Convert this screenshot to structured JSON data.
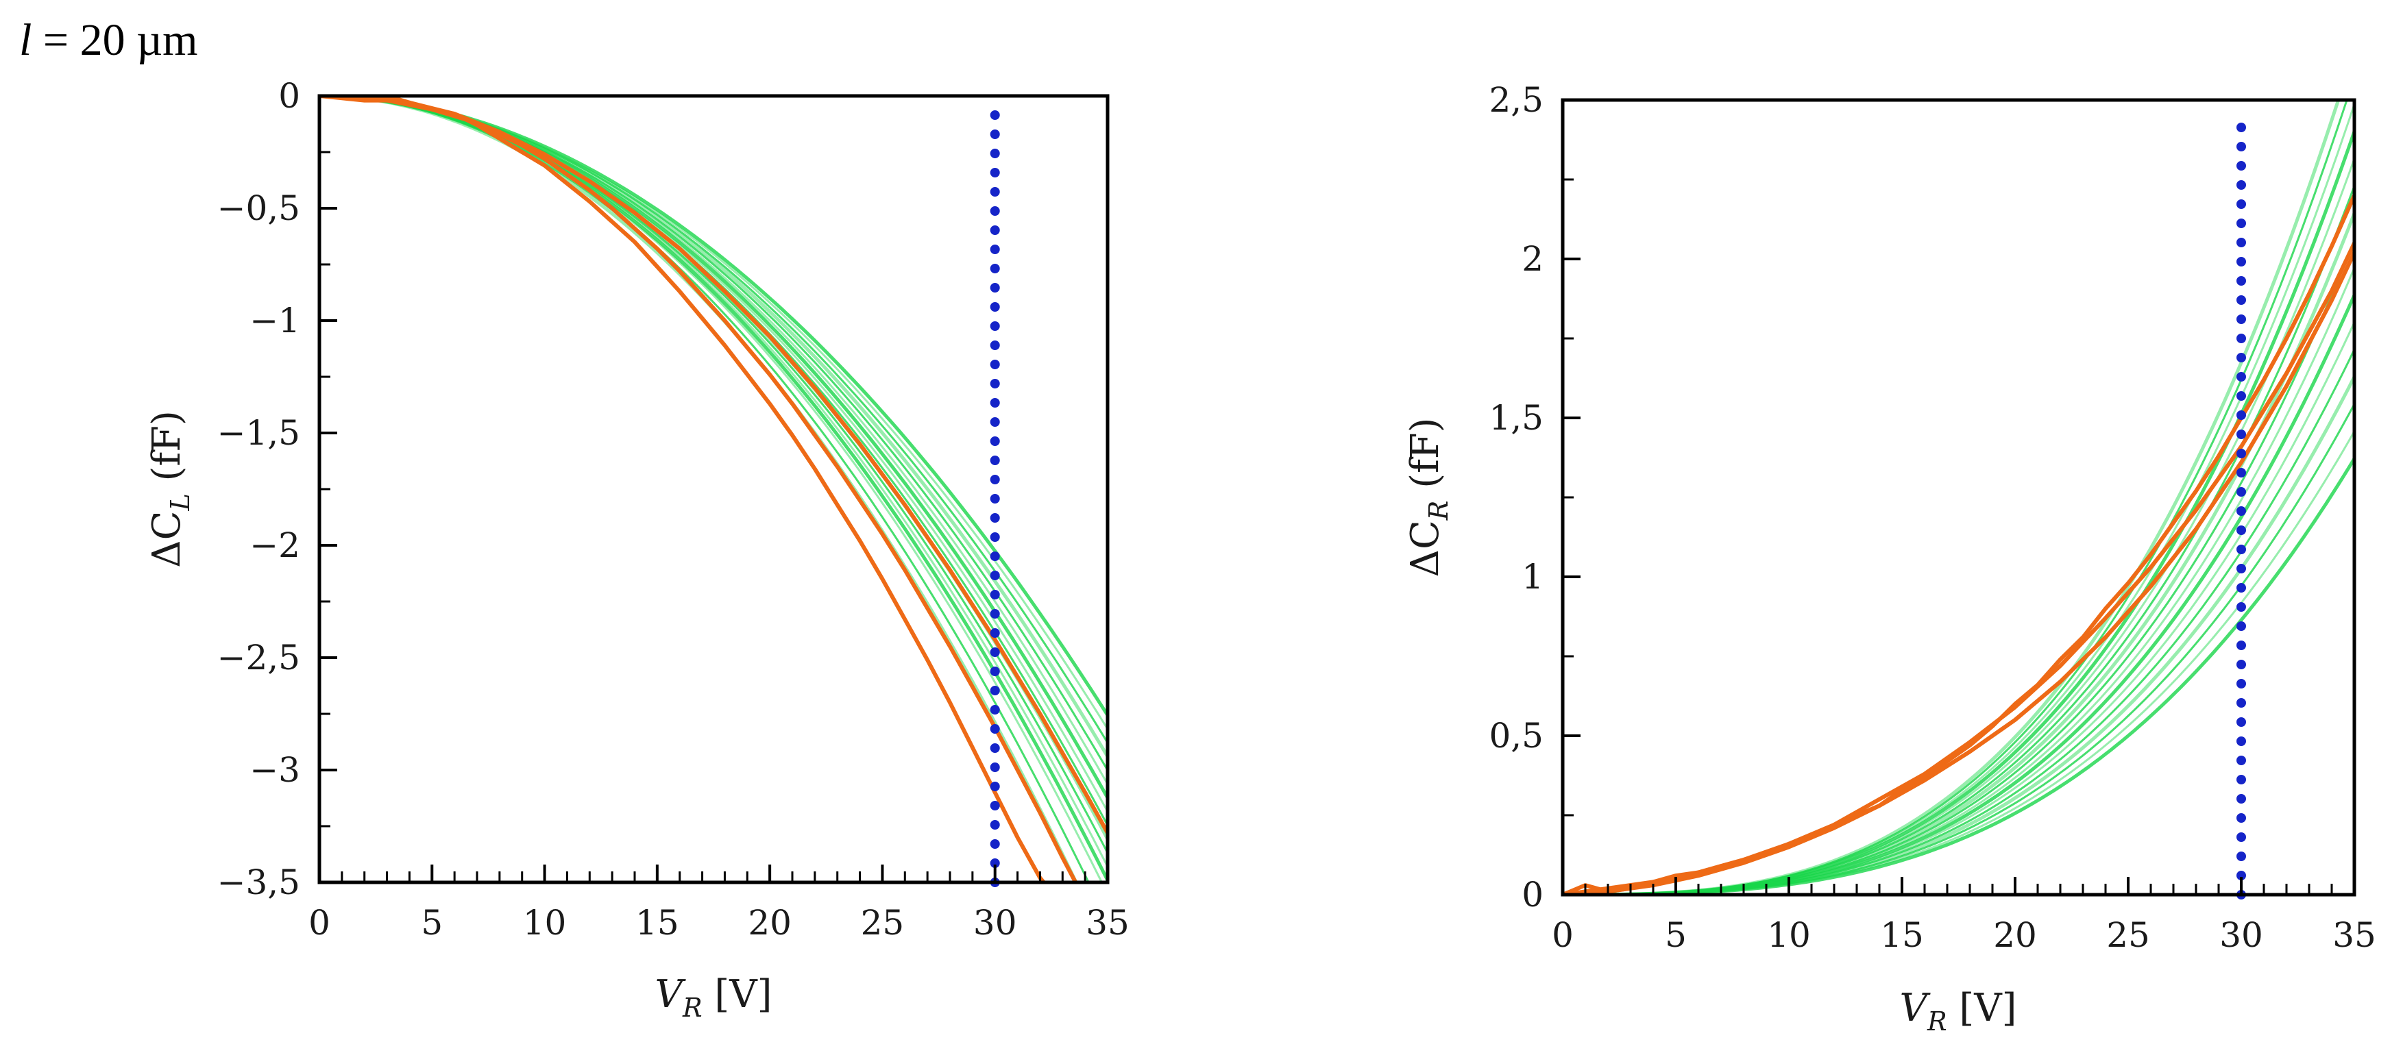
{
  "figure_label": "l = 20 µm",
  "figure_label_parts": {
    "var": "l",
    "rest": " = 20 µm"
  },
  "colors": {
    "sim_curves": "#19d64a",
    "measured": "#ee6a16",
    "marker_line": "#1524c8",
    "axis": "#000000"
  },
  "chart_data": [
    {
      "type": "line",
      "name": "left-panel",
      "title": "",
      "xlabel": "V_R [V]",
      "xlabel_parts": {
        "main": "V",
        "sub": "R",
        "unit": "[V]"
      },
      "ylabel": "ΔC_L (fF)",
      "ylabel_parts": {
        "main": "ΔC",
        "sub": "L",
        "unit": "(fF)"
      },
      "xlim": [
        0,
        35
      ],
      "ylim": [
        -3.5,
        0
      ],
      "x_ticks": [
        0,
        5,
        10,
        15,
        20,
        25,
        30,
        35
      ],
      "x_tick_labels": [
        "0",
        "5",
        "10",
        "15",
        "20",
        "25",
        "30",
        "35"
      ],
      "y_ticks": [
        0,
        -0.5,
        -1,
        -1.5,
        -2,
        -2.5,
        -3,
        -3.5
      ],
      "y_tick_labels": [
        "0",
        "−0,5",
        "−1",
        "−1,5",
        "−2",
        "−2,5",
        "−3",
        "−3,5"
      ],
      "grid": false,
      "marker_x": 30,
      "marker_y_range": [
        -3.5,
        -0.08
      ],
      "curve_model": "y = c * x^2",
      "simulated_coefficients": [
        -0.00225,
        -0.0023,
        -0.00235,
        -0.0024,
        -0.00245,
        -0.0025,
        -0.00255,
        -0.0026,
        -0.00265,
        -0.0027,
        -0.00275,
        -0.0028,
        -0.00285,
        -0.0029,
        -0.003,
        -0.0031
      ],
      "measured_series": [
        {
          "name": "measured-1",
          "x": [
            0,
            1,
            2,
            3,
            4,
            5,
            6,
            7,
            8,
            9,
            10,
            11,
            12,
            13,
            14,
            15,
            16,
            17,
            18,
            19,
            20,
            21,
            22,
            23,
            24,
            25,
            26,
            27,
            28,
            29,
            30,
            31,
            32,
            33
          ],
          "y": [
            0,
            0.02,
            -0.01,
            0,
            -0.03,
            -0.06,
            -0.08,
            -0.13,
            -0.19,
            -0.25,
            -0.31,
            -0.39,
            -0.47,
            -0.56,
            -0.65,
            -0.76,
            -0.87,
            -0.99,
            -1.11,
            -1.24,
            -1.37,
            -1.51,
            -1.66,
            -1.82,
            -1.98,
            -2.15,
            -2.33,
            -2.51,
            -2.7,
            -2.9,
            -3.1,
            -3.3,
            -3.48,
            -3.6
          ]
        },
        {
          "name": "measured-2",
          "x": [
            0,
            1,
            2,
            3,
            4,
            5,
            6,
            7,
            8,
            9,
            10,
            11,
            12,
            13,
            14,
            15,
            16,
            17,
            18,
            19,
            20,
            21,
            22,
            23,
            24,
            25,
            26,
            27,
            28,
            29,
            30,
            31,
            32,
            33,
            34
          ],
          "y": [
            0,
            -0.01,
            -0.02,
            -0.02,
            -0.04,
            -0.06,
            -0.09,
            -0.12,
            -0.17,
            -0.22,
            -0.28,
            -0.35,
            -0.42,
            -0.5,
            -0.59,
            -0.68,
            -0.78,
            -0.89,
            -1.0,
            -1.12,
            -1.24,
            -1.37,
            -1.51,
            -1.65,
            -1.8,
            -1.95,
            -2.11,
            -2.28,
            -2.45,
            -2.63,
            -2.81,
            -3.0,
            -3.19,
            -3.39,
            -3.58
          ]
        },
        {
          "name": "measured-3",
          "x": [
            0,
            2,
            4,
            6,
            8,
            10,
            12,
            14,
            16,
            18,
            20,
            22,
            24,
            26,
            28,
            30,
            32,
            34,
            35
          ],
          "y": [
            0,
            0,
            -0.03,
            -0.08,
            -0.16,
            -0.26,
            -0.38,
            -0.52,
            -0.68,
            -0.87,
            -1.07,
            -1.3,
            -1.55,
            -1.82,
            -2.11,
            -2.42,
            -2.75,
            -3.1,
            -3.28
          ]
        }
      ]
    },
    {
      "type": "line",
      "name": "right-panel",
      "title": "",
      "xlabel": "V_R [V]",
      "xlabel_parts": {
        "main": "V",
        "sub": "R",
        "unit": "[V]"
      },
      "ylabel": "ΔC_R (fF)",
      "ylabel_parts": {
        "main": "ΔC",
        "sub": "R",
        "unit": "(fF)"
      },
      "xlim": [
        0,
        35
      ],
      "ylim": [
        0,
        2.5
      ],
      "x_ticks": [
        0,
        5,
        10,
        15,
        20,
        25,
        30,
        35
      ],
      "x_tick_labels": [
        "0",
        "5",
        "10",
        "15",
        "20",
        "25",
        "30",
        "35"
      ],
      "y_ticks": [
        0,
        0.5,
        1,
        1.5,
        2,
        2.5
      ],
      "y_tick_labels": [
        "0",
        "0,5",
        "1",
        "1,5",
        "2",
        "2,5"
      ],
      "grid": false,
      "marker_x": 30,
      "marker_y_range": [
        0,
        2.45
      ],
      "curve_model": "y = c * x^3",
      "simulated_coefficients": [
        3.2e-05,
        3.4e-05,
        3.6e-05,
        3.8e-05,
        4e-05,
        4.2e-05,
        4.4e-05,
        4.6e-05,
        4.8e-05,
        5e-05,
        5.2e-05,
        5.4e-05,
        5.6e-05,
        5.8e-05,
        6e-05,
        6.2e-05
      ],
      "measured_series": [
        {
          "name": "measured-1",
          "x": [
            0,
            1,
            2,
            3,
            4,
            5,
            6,
            7,
            8,
            9,
            10,
            11,
            12,
            13,
            14,
            15,
            16,
            17,
            18,
            19,
            20,
            21,
            22,
            23,
            24,
            25,
            26,
            27,
            28,
            29,
            30,
            31,
            32,
            33,
            34,
            35
          ],
          "y": [
            0,
            0.03,
            0.01,
            0.02,
            0.04,
            0.06,
            0.07,
            0.09,
            0.11,
            0.13,
            0.16,
            0.18,
            0.22,
            0.25,
            0.28,
            0.33,
            0.37,
            0.42,
            0.47,
            0.53,
            0.6,
            0.66,
            0.74,
            0.81,
            0.9,
            0.98,
            1.07,
            1.17,
            1.27,
            1.38,
            1.5,
            1.62,
            1.75,
            1.89,
            2.04,
            2.2
          ]
        },
        {
          "name": "measured-2",
          "x": [
            0,
            2,
            4,
            6,
            8,
            10,
            12,
            14,
            16,
            18,
            20,
            22,
            24,
            26,
            28,
            30,
            32,
            34,
            35
          ],
          "y": [
            0,
            0.02,
            0.04,
            0.07,
            0.11,
            0.16,
            0.22,
            0.3,
            0.38,
            0.48,
            0.59,
            0.72,
            0.87,
            1.03,
            1.21,
            1.41,
            1.64,
            1.9,
            2.05
          ]
        },
        {
          "name": "measured-3",
          "x": [
            0,
            2,
            4,
            6,
            8,
            10,
            12,
            14,
            16,
            18,
            20,
            22,
            24,
            26,
            28,
            30,
            32,
            34,
            35
          ],
          "y": [
            0,
            0.01,
            0.03,
            0.06,
            0.1,
            0.15,
            0.21,
            0.28,
            0.36,
            0.45,
            0.55,
            0.67,
            0.81,
            0.97,
            1.15,
            1.36,
            1.6,
            1.87,
            2.02
          ]
        }
      ]
    }
  ]
}
